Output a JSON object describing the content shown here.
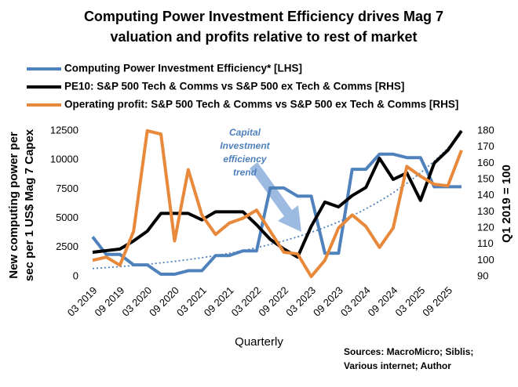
{
  "chart_data": {
    "type": "line",
    "title": [
      "Computing Power Investment Efficiency drives Mag 7",
      "valuation and profits relative to rest of market"
    ],
    "categories": [
      "03 2019",
      null,
      "09 2019",
      null,
      "03 2020",
      null,
      "09 2020",
      null,
      "03 2021",
      null,
      "09 2021",
      null,
      "03 2022",
      null,
      "09 2022",
      null,
      "03 2023",
      null,
      "09 2023",
      null,
      "03 2024",
      null,
      "09 2024",
      null,
      "03 2025",
      null,
      "09 2025",
      null
    ],
    "series": [
      {
        "name": "Computing Power Investment Efficiency* [LHS]",
        "color": "#4f81bd",
        "axis": "y",
        "values": [
          3400,
          1900,
          1900,
          1000,
          1000,
          200,
          200,
          500,
          500,
          1800,
          1800,
          2200,
          2200,
          7600,
          7600,
          6900,
          6900,
          2000,
          2000,
          9200,
          9200,
          10500,
          10500,
          10200,
          10200,
          7700,
          7700,
          7700
        ]
      },
      {
        "name": "PE10: S&P 500 Tech & Comms vs S&P 500 ex Tech & Comms [RHS]",
        "color": "#000000",
        "axis": "y2",
        "values": [
          105,
          106,
          107,
          112,
          118,
          129,
          129,
          129,
          125,
          130,
          130,
          130,
          122,
          113,
          107,
          102,
          121,
          136,
          133,
          140,
          145,
          163,
          150,
          154,
          137,
          160,
          168,
          180
        ]
      },
      {
        "name": "Operating profit: S&P 500 Tech & Comms vs S&P 500 ex Tech & Comms [RHS]",
        "color": "#e8883a",
        "axis": "y2",
        "values": [
          100,
          102,
          97,
          118,
          180,
          178,
          112,
          156,
          128,
          116,
          123,
          126,
          131,
          118,
          105,
          104,
          90,
          100,
          120,
          128,
          121,
          108,
          120,
          158,
          152,
          147,
          146,
          168
        ]
      }
    ],
    "ylim": [
      0,
      12500
    ],
    "yticks": [
      0,
      2500,
      5000,
      7500,
      10000,
      12500
    ],
    "y2lim": [
      90,
      180
    ],
    "y2ticks": [
      90,
      100,
      110,
      120,
      130,
      140,
      150,
      160,
      170,
      180
    ],
    "ylabel": [
      "New computing power per",
      "sec per 1 US$ Mag 7 Capex"
    ],
    "y2label": "Q1 2019 = 100",
    "xlabel": "Quarterly",
    "annotation": [
      "Capital",
      "Investment",
      "efficiency",
      "trend"
    ],
    "sources": [
      "Sources:  MacroMicro;  Siblis;",
      "Various internet; Author"
    ],
    "trendline": true,
    "grid": false
  }
}
